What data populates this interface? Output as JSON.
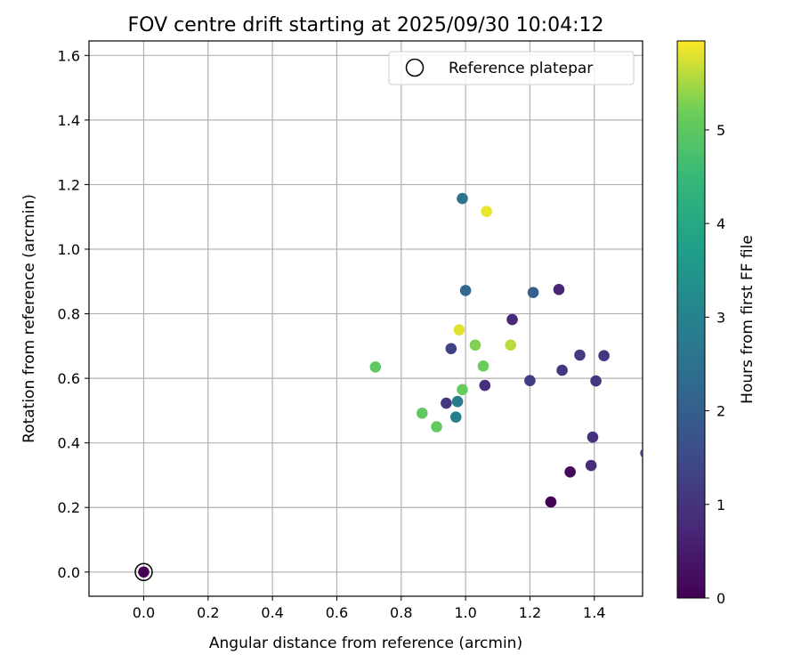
{
  "chart_data": {
    "type": "scatter",
    "title": "FOV centre drift starting at 2025/09/30 10:04:12",
    "xlabel": "Angular distance from reference (arcmin)",
    "ylabel": "Rotation from reference (arcmin)",
    "xlim": [
      -0.17,
      1.55
    ],
    "ylim": [
      -0.075,
      1.645
    ],
    "xticks": [
      0.0,
      0.2,
      0.4,
      0.6,
      0.8,
      1.0,
      1.2,
      1.4
    ],
    "xtick_labels": [
      "0.0",
      "0.2",
      "0.4",
      "0.6",
      "0.8",
      "1.0",
      "1.2",
      "1.4"
    ],
    "yticks": [
      0.0,
      0.2,
      0.4,
      0.6,
      0.8,
      1.0,
      1.2,
      1.4,
      1.6
    ],
    "ytick_labels": [
      "0.0",
      "0.2",
      "0.4",
      "0.6",
      "0.8",
      "1.0",
      "1.2",
      "1.4",
      "1.6"
    ],
    "grid": true,
    "legend": {
      "position": "top-right",
      "entries": [
        "Reference platepar"
      ]
    },
    "colorbar": {
      "label": "Hours from first FF file",
      "colormap": "viridis",
      "range": [
        0,
        5.95
      ],
      "ticks": [
        0,
        1,
        2,
        3,
        4,
        5
      ],
      "tick_labels": [
        "0",
        "1",
        "2",
        "3",
        "4",
        "5"
      ]
    },
    "reference": {
      "x": 0.0,
      "y": 0.0
    },
    "points": [
      {
        "x": 0.0,
        "y": 0.0,
        "hours": 0.0
      },
      {
        "x": 1.265,
        "y": 0.217,
        "hours": 0.05
      },
      {
        "x": 1.325,
        "y": 0.31,
        "hours": 0.15
      },
      {
        "x": 1.29,
        "y": 0.875,
        "hours": 0.7
      },
      {
        "x": 1.145,
        "y": 0.782,
        "hours": 0.75
      },
      {
        "x": 1.39,
        "y": 0.33,
        "hours": 0.85
      },
      {
        "x": 1.06,
        "y": 0.578,
        "hours": 0.9
      },
      {
        "x": 1.395,
        "y": 0.418,
        "hours": 0.95
      },
      {
        "x": 1.3,
        "y": 0.625,
        "hours": 1.0
      },
      {
        "x": 1.405,
        "y": 0.592,
        "hours": 1.05
      },
      {
        "x": 0.94,
        "y": 0.523,
        "hours": 1.1
      },
      {
        "x": 1.43,
        "y": 0.67,
        "hours": 1.1
      },
      {
        "x": 1.355,
        "y": 0.672,
        "hours": 1.15
      },
      {
        "x": 1.2,
        "y": 0.593,
        "hours": 1.2
      },
      {
        "x": 0.955,
        "y": 0.692,
        "hours": 1.3
      },
      {
        "x": 1.56,
        "y": 0.368,
        "hours": 1.4
      },
      {
        "x": 1.21,
        "y": 0.866,
        "hours": 2.0
      },
      {
        "x": 1.0,
        "y": 0.872,
        "hours": 2.2
      },
      {
        "x": 0.99,
        "y": 1.157,
        "hours": 2.6
      },
      {
        "x": 0.975,
        "y": 0.528,
        "hours": 2.8
      },
      {
        "x": 0.97,
        "y": 0.48,
        "hours": 2.9
      },
      {
        "x": 0.72,
        "y": 0.635,
        "hours": 5.0
      },
      {
        "x": 0.865,
        "y": 0.492,
        "hours": 5.0
      },
      {
        "x": 0.91,
        "y": 0.45,
        "hours": 5.05
      },
      {
        "x": 0.99,
        "y": 0.565,
        "hours": 5.1
      },
      {
        "x": 1.055,
        "y": 0.638,
        "hours": 5.15
      },
      {
        "x": 1.03,
        "y": 0.703,
        "hours": 5.3
      },
      {
        "x": 1.14,
        "y": 0.703,
        "hours": 5.6
      },
      {
        "x": 0.98,
        "y": 0.75,
        "hours": 5.8
      },
      {
        "x": 1.065,
        "y": 1.117,
        "hours": 5.85
      }
    ]
  }
}
